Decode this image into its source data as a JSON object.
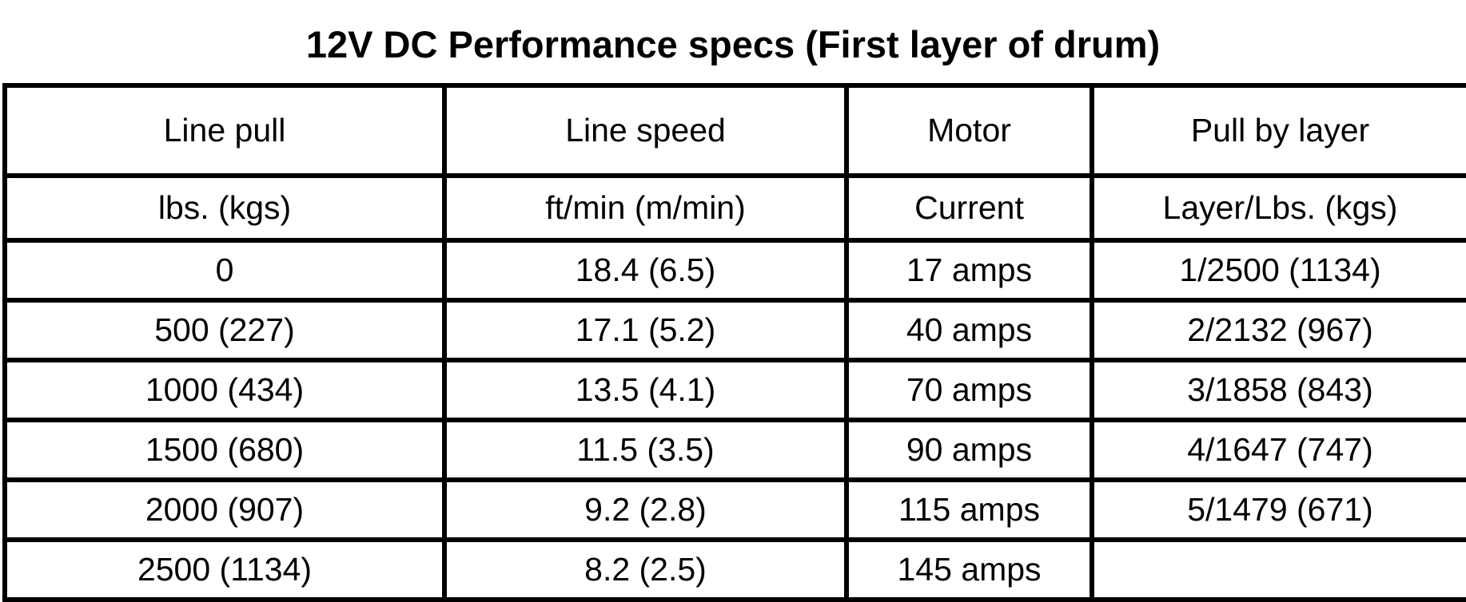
{
  "title": "12V DC Performance specs (First layer of drum)",
  "table": {
    "headers": [
      "Line pull",
      "Line speed",
      "Motor",
      "Pull by layer"
    ],
    "units": [
      "lbs. (kgs)",
      "ft/min (m/min)",
      "Current",
      "Layer/Lbs. (kgs)"
    ],
    "rows": [
      [
        "0",
        "18.4 (6.5)",
        "17 amps",
        "1/2500 (1134)"
      ],
      [
        "500 (227)",
        "17.1 (5.2)",
        "40 amps",
        "2/2132 (967)"
      ],
      [
        "1000 (434)",
        "13.5 (4.1)",
        "70 amps",
        "3/1858 (843)"
      ],
      [
        "1500 (680)",
        "11.5 (3.5)",
        "90 amps",
        "4/1647 (747)"
      ],
      [
        "2000 (907)",
        "9.2 (2.8)",
        "115 amps",
        "5/1479 (671)"
      ],
      [
        "2500 (1134)",
        "8.2 (2.5)",
        "145 amps",
        ""
      ]
    ]
  }
}
